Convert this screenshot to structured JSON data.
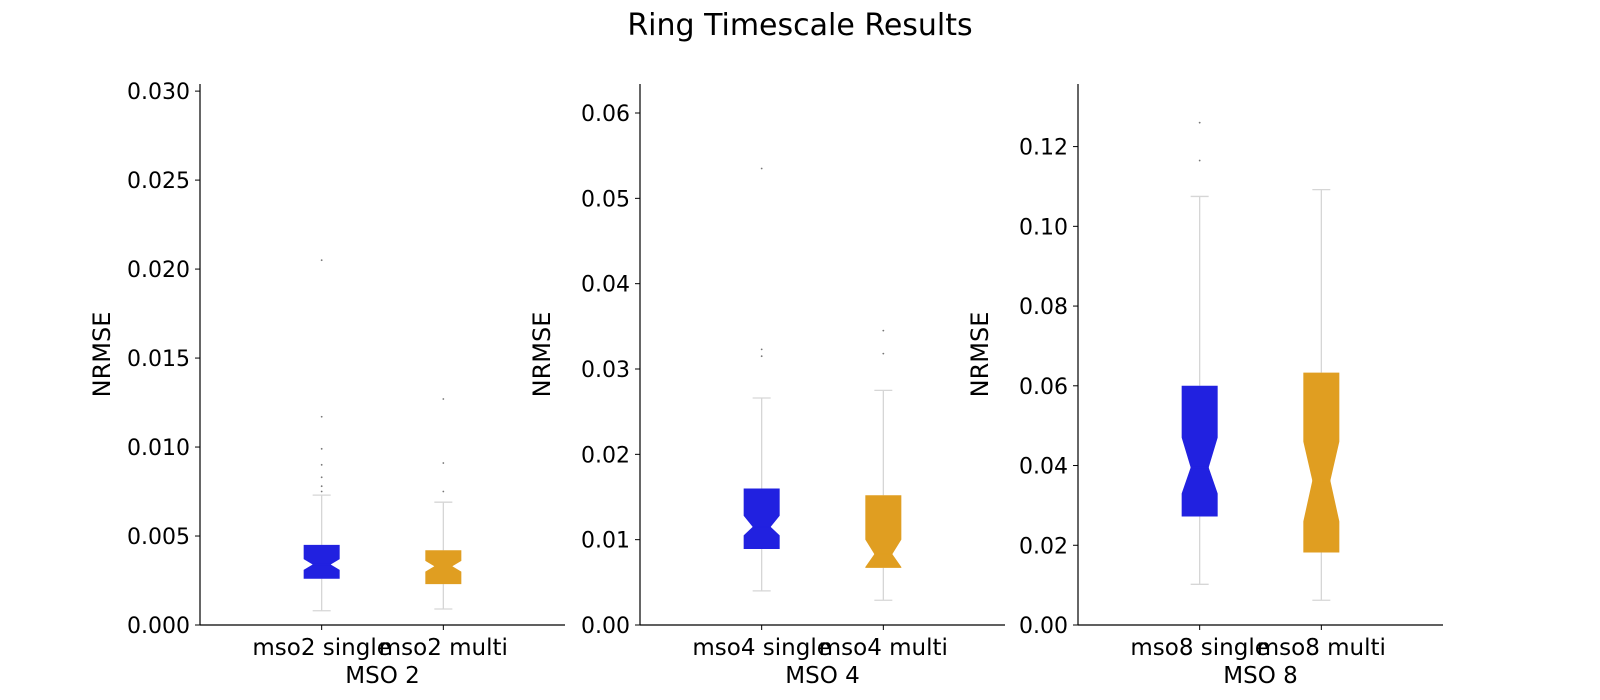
{
  "figure_title": "Ring Timescale Results",
  "chart_data": [
    {
      "type": "box",
      "notched": true,
      "title": "",
      "xlabel": "MSO 2",
      "ylabel": "NRMSE",
      "ylim": [
        0,
        0.0304
      ],
      "yticks": [
        "0.000",
        "0.005",
        "0.010",
        "0.015",
        "0.020",
        "0.025",
        "0.030"
      ],
      "ytick_values": [
        0,
        0.005,
        0.01,
        0.015,
        0.02,
        0.025,
        0.03
      ],
      "grid": false,
      "categories": [
        "mso2 single",
        "mso2 multi"
      ],
      "boxes": [
        {
          "name": "mso2 single",
          "color": "#2121e0",
          "whislo": 0.0008,
          "q1": 0.0026,
          "med": 0.0034,
          "q3": 0.0045,
          "whishi": 0.0073,
          "notch_lo": 0.0031,
          "notch_hi": 0.0037,
          "fliers": [
            0.0075,
            0.0078,
            0.0083,
            0.009,
            0.0099,
            0.0117,
            0.0205
          ]
        },
        {
          "name": "mso2 multi",
          "color": "#e09e21",
          "whislo": 0.0009,
          "q1": 0.0023,
          "med": 0.0033,
          "q3": 0.0042,
          "whishi": 0.0069,
          "notch_lo": 0.003,
          "notch_hi": 0.0036,
          "fliers": [
            0.0075,
            0.0091,
            0.0127
          ]
        }
      ]
    },
    {
      "type": "box",
      "notched": true,
      "title": "",
      "xlabel": "MSO 4",
      "ylabel": "NRMSE",
      "ylim": [
        0,
        0.0634
      ],
      "yticks": [
        "0.00",
        "0.01",
        "0.02",
        "0.03",
        "0.04",
        "0.05",
        "0.06"
      ],
      "ytick_values": [
        0,
        0.01,
        0.02,
        0.03,
        0.04,
        0.05,
        0.06
      ],
      "grid": false,
      "categories": [
        "mso4 single",
        "mso4 multi"
      ],
      "boxes": [
        {
          "name": "mso4 single",
          "color": "#2121e0",
          "whislo": 0.004,
          "q1": 0.0089,
          "med": 0.0115,
          "q3": 0.016,
          "whishi": 0.0266,
          "notch_lo": 0.0105,
          "notch_hi": 0.0128,
          "fliers": [
            0.0315,
            0.0323,
            0.0535
          ]
        },
        {
          "name": "mso4 multi",
          "color": "#e09e21",
          "whislo": 0.0029,
          "q1": 0.0067,
          "med": 0.0083,
          "q3": 0.0152,
          "whishi": 0.0275,
          "notch_lo": 0.0068,
          "notch_hi": 0.01,
          "fliers": [
            0.0318,
            0.0345
          ]
        }
      ]
    },
    {
      "type": "box",
      "notched": true,
      "title": "",
      "xlabel": "MSO 8",
      "ylabel": "NRMSE",
      "ylim": [
        0,
        0.1357
      ],
      "yticks": [
        "0.00",
        "0.02",
        "0.04",
        "0.06",
        "0.08",
        "0.10",
        "0.12"
      ],
      "ytick_values": [
        0,
        0.02,
        0.04,
        0.06,
        0.08,
        0.1,
        0.12
      ],
      "grid": false,
      "categories": [
        "mso8 single",
        "mso8 multi"
      ],
      "boxes": [
        {
          "name": "mso8 single",
          "color": "#2121e0",
          "whislo": 0.0102,
          "q1": 0.0272,
          "med": 0.0395,
          "q3": 0.06,
          "whishi": 0.1075,
          "notch_lo": 0.033,
          "notch_hi": 0.047,
          "fliers": [
            0.1165,
            0.126
          ]
        },
        {
          "name": "mso8 multi",
          "color": "#e09e21",
          "whislo": 0.0062,
          "q1": 0.0182,
          "med": 0.0362,
          "q3": 0.0633,
          "whishi": 0.1092,
          "notch_lo": 0.026,
          "notch_hi": 0.046,
          "fliers": []
        }
      ]
    }
  ]
}
